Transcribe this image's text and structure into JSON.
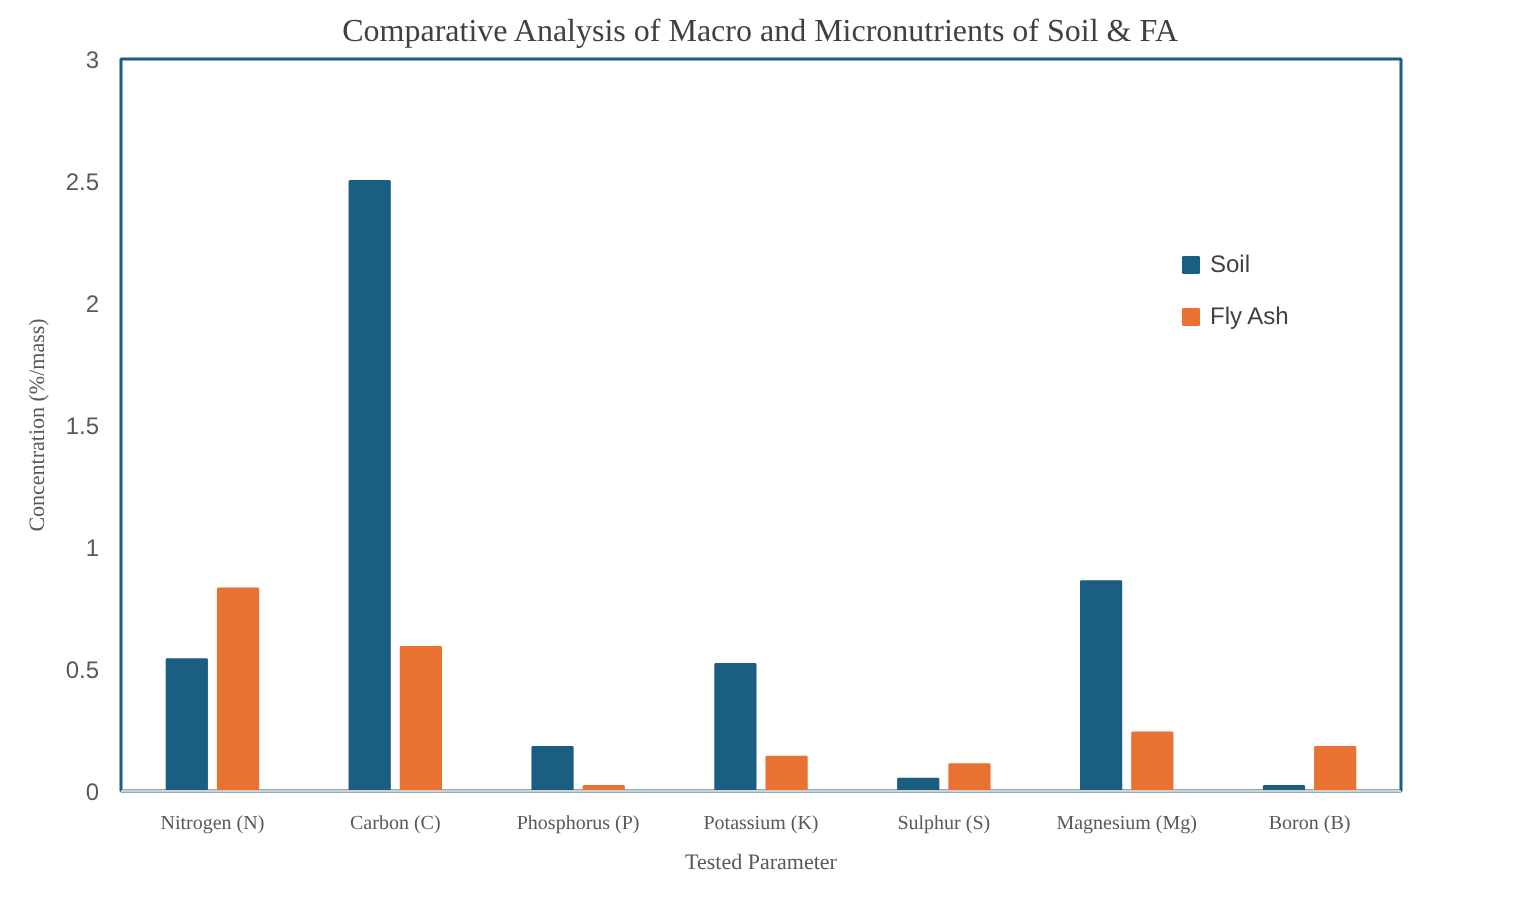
{
  "chart_data": {
    "type": "bar",
    "title": "Comparative Analysis of Macro and Micronutrients of Soil & FA",
    "xlabel": "Tested Parameter",
    "ylabel": "Concentration (%/mass)",
    "categories": [
      "Nitrogen (N)",
      "Carbon (C)",
      "Phosphorus (P)",
      "Potassium (K)",
      "Sulphur (S)",
      "Magnesium (Mg)",
      "Boron (B)"
    ],
    "series": [
      {
        "name": "Soil",
        "color": "#1a5e82",
        "values": [
          0.54,
          2.5,
          0.18,
          0.52,
          0.05,
          0.86,
          0.02
        ]
      },
      {
        "name": "Fly Ash",
        "color": "#e97132",
        "values": [
          0.83,
          0.59,
          0.02,
          0.14,
          0.11,
          0.24,
          0.18
        ]
      }
    ],
    "ylim": [
      0,
      3
    ],
    "yticks": [
      0,
      0.5,
      1,
      1.5,
      2,
      2.5,
      3
    ],
    "grid": false,
    "legend": "right"
  }
}
